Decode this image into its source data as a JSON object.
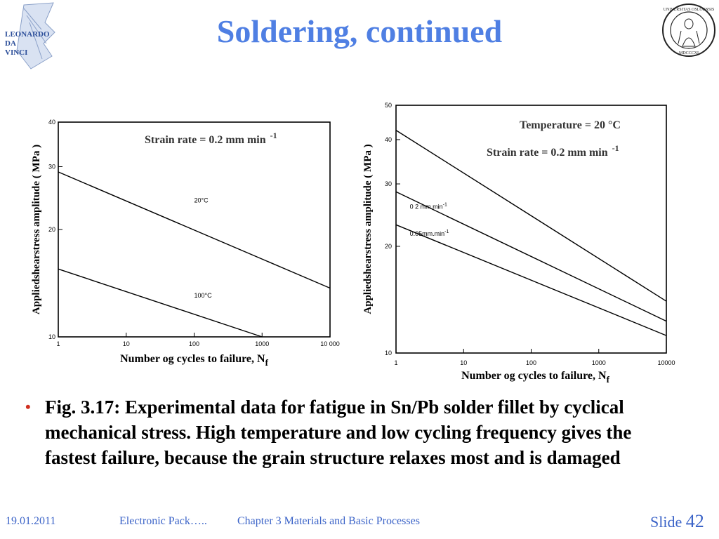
{
  "slide": {
    "title": "Soldering, continued",
    "bullet": "Fig. 3.17: Experimental data for fatigue in Sn/Pb solder fillet by cyclical mechanical stress. High temperature and low cycling frequency gives the fastest failure, because the grain structure relaxes most and is damaged",
    "footer": {
      "date": "19.01.2011",
      "course": "Electronic Pack…..",
      "chapter": "Chapter 3 Materials and Basic Processes",
      "slide_label": "Slide",
      "slide_number": "42"
    },
    "logos": {
      "left": "LEONARDO DA VINCI",
      "right": "UNIVERSITAS OSLOENSIS MDCCCXI"
    },
    "colors": {
      "title": "#4f7fe3",
      "footer": "#3c64c8",
      "bullet_dot": "#d03020"
    }
  },
  "chart_data": [
    {
      "type": "line",
      "xscale": "log",
      "yscale": "log",
      "xlim": [
        1,
        10000
      ],
      "ylim": [
        10,
        40
      ],
      "x_ticks": [
        1,
        10,
        100,
        1000,
        10000
      ],
      "x_tick_labels": [
        "1",
        "10",
        "100",
        "1000",
        "10 000"
      ],
      "y_ticks": [
        10,
        20,
        30,
        40
      ],
      "y_tick_labels": [
        "10",
        "20",
        "30",
        "40"
      ],
      "ylabel": "Appliedshearstress amplitude ( MPa )",
      "xlabel": "Number og cycles to failure, N",
      "xlabel_sub": "f",
      "annotation": {
        "text": "Strain rate = 0.2 mm min",
        "sup": "-1"
      },
      "series": [
        {
          "name": "20°C",
          "x": [
            1,
            10000
          ],
          "y": [
            29,
            13.7
          ]
        },
        {
          "name": "100°C",
          "x": [
            1,
            1000
          ],
          "y": [
            15.5,
            10
          ]
        }
      ],
      "series_label_pos": [
        [
          100,
          23.8
        ],
        [
          100,
          12.9
        ]
      ]
    },
    {
      "type": "line",
      "xscale": "log",
      "yscale": "log",
      "xlim": [
        1,
        10000
      ],
      "ylim": [
        10,
        50
      ],
      "x_ticks": [
        1,
        10,
        100,
        1000,
        10000
      ],
      "x_tick_labels": [
        "1",
        "10",
        "100",
        "1000",
        "10000"
      ],
      "y_ticks": [
        10,
        20,
        30,
        40,
        50
      ],
      "y_tick_labels": [
        "10",
        "20",
        "30",
        "40",
        "50"
      ],
      "ylabel": "Appliedshearstress amplitude ( MPa )",
      "xlabel": "Number og cycles to failure, N",
      "xlabel_sub": "f",
      "annotations": [
        {
          "text": "Temperature = 20 °C",
          "sup": ""
        },
        {
          "text": "Strain rate = 0.2 mm min",
          "sup": "-1"
        }
      ],
      "series": [
        {
          "name": "",
          "x": [
            1,
            10000
          ],
          "y": [
            42.5,
            14
          ]
        },
        {
          "name": "0 2 mm  min",
          "x": [
            1,
            10000
          ],
          "y": [
            28.5,
            12.3
          ]
        },
        {
          "name": "0.05mm.min",
          "x": [
            1,
            10000
          ],
          "y": [
            23,
            11.2
          ]
        }
      ],
      "series_label_pos": [
        [
          null,
          null
        ],
        [
          1.6,
          25.5
        ],
        [
          1.6,
          21.4
        ]
      ]
    }
  ]
}
